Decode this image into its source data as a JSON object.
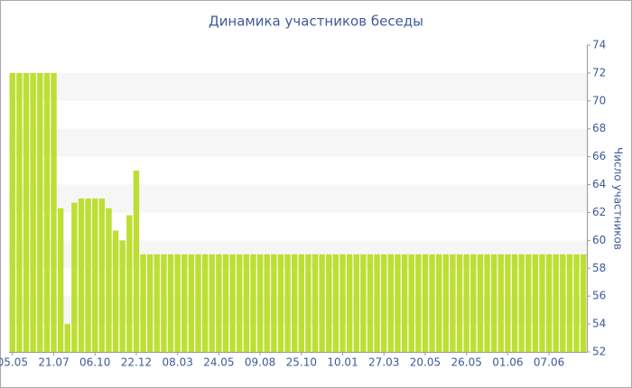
{
  "chart_data": {
    "type": "bar",
    "title": "Динамика участников беседы",
    "y_label": "Число участников",
    "categories": [
      "05.05",
      null,
      null,
      null,
      null,
      null,
      "21.07",
      null,
      null,
      null,
      null,
      null,
      "06.10",
      null,
      null,
      null,
      null,
      null,
      "22.12",
      null,
      null,
      null,
      null,
      null,
      "08.03",
      null,
      null,
      null,
      null,
      null,
      "24.05",
      null,
      null,
      null,
      null,
      null,
      "09.08",
      null,
      null,
      null,
      null,
      null,
      "25.10",
      null,
      null,
      null,
      null,
      null,
      "10.01",
      null,
      null,
      null,
      null,
      null,
      "27.03",
      null,
      null,
      null,
      null,
      null,
      "20.05",
      null,
      null,
      null,
      null,
      null,
      "26.05",
      null,
      null,
      null,
      null,
      null,
      "01.06",
      null,
      null,
      null,
      null,
      null,
      "07.06",
      null,
      null,
      null,
      null,
      null
    ],
    "values": [
      72,
      72,
      72,
      72,
      72,
      72,
      72,
      62.3,
      54,
      62.7,
      63,
      63,
      63,
      63,
      62.3,
      60.7,
      60,
      61.8,
      65,
      59,
      59,
      59,
      59,
      59,
      59,
      59,
      59,
      59,
      59,
      59,
      59,
      59,
      59,
      59,
      59,
      59,
      59,
      59,
      59,
      59,
      59,
      59,
      59,
      59,
      59,
      59,
      59,
      59,
      59,
      59,
      59,
      59,
      59,
      59,
      59,
      59,
      59,
      59,
      59,
      59,
      59,
      59,
      59,
      59,
      59,
      59,
      59,
      59,
      59,
      59,
      59,
      59,
      59,
      59,
      59,
      59,
      59,
      59,
      59,
      59,
      59,
      59,
      59,
      59
    ],
    "color": "#bddf33",
    "ylim": [
      52,
      74
    ],
    "yticks": [
      52,
      54,
      56,
      58,
      60,
      62,
      64,
      66,
      68,
      70,
      72,
      74
    ],
    "grid": "bands",
    "y_axis_side": "right"
  }
}
